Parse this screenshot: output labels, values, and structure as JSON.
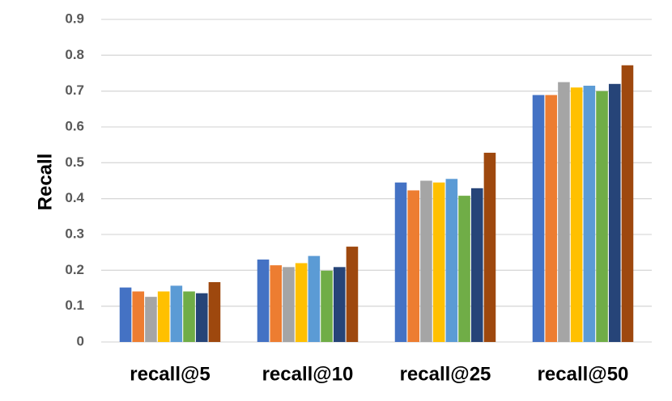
{
  "chart_data": {
    "type": "bar",
    "title": "",
    "xlabel": "",
    "ylabel": "Recall",
    "ylim": [
      0,
      0.9
    ],
    "yticks": [
      "0",
      "0.1",
      "0.2",
      "0.3",
      "0.4",
      "0.5",
      "0.6",
      "0.7",
      "0.8",
      "0.9"
    ],
    "grid": true,
    "legend": "none",
    "categories": [
      "recall@5",
      "recall@10",
      "recall@25",
      "recall@50"
    ],
    "series": [
      {
        "color": "#4472C4",
        "values": [
          0.152,
          0.23,
          0.445,
          0.689
        ]
      },
      {
        "color": "#ED7D31",
        "values": [
          0.141,
          0.214,
          0.423,
          0.689
        ]
      },
      {
        "color": "#A5A5A5",
        "values": [
          0.126,
          0.209,
          0.45,
          0.725
        ]
      },
      {
        "color": "#FFC000",
        "values": [
          0.141,
          0.22,
          0.445,
          0.71
        ]
      },
      {
        "color": "#5B9BD5",
        "values": [
          0.157,
          0.24,
          0.455,
          0.715
        ]
      },
      {
        "color": "#70AD47",
        "values": [
          0.141,
          0.199,
          0.408,
          0.7
        ]
      },
      {
        "color": "#264478",
        "values": [
          0.136,
          0.209,
          0.429,
          0.72
        ]
      },
      {
        "color": "#9E480E",
        "values": [
          0.167,
          0.266,
          0.528,
          0.772
        ]
      }
    ]
  }
}
